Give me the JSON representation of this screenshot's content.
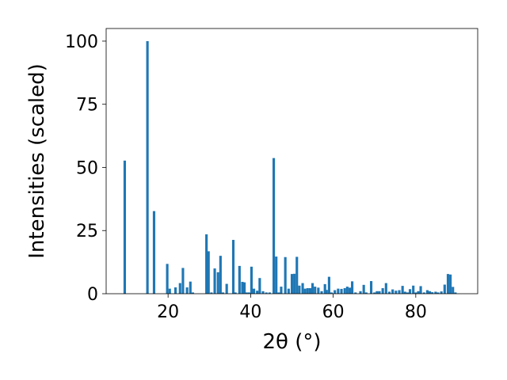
{
  "chart_data": {
    "type": "bar",
    "xlabel": "2θ (°)",
    "ylabel": "Intensities (scaled)",
    "xlim": [
      5,
      95
    ],
    "ylim": [
      0,
      105
    ],
    "x_ticks": [
      20,
      40,
      60,
      80
    ],
    "y_ticks": [
      0,
      25,
      50,
      75,
      100
    ],
    "grid": false,
    "bar_color": "#1f77b4",
    "series": [
      {
        "x": [
          9.5,
          15.0,
          16.6,
          19.8,
          20.4,
          21.8,
          22.9,
          23.6,
          24.6,
          25.4,
          26.0,
          29.3,
          29.8,
          30.5,
          31.3,
          32.1,
          32.7,
          33.3,
          34.2,
          35.8,
          36.3,
          37.3,
          38.0,
          38.5,
          39.0,
          39.6,
          40.2,
          40.8,
          41.6,
          42.2,
          43.0,
          43.8,
          44.6,
          45.6,
          46.2,
          46.8,
          47.4,
          48.4,
          49.2,
          50.0,
          50.6,
          51.2,
          51.8,
          52.6,
          53.2,
          53.8,
          54.4,
          55.0,
          55.6,
          56.4,
          57.2,
          58.0,
          58.4,
          59.0,
          59.6,
          60.4,
          61.2,
          62.0,
          62.8,
          63.4,
          64.0,
          64.6,
          65.4,
          66.6,
          67.4,
          68.0,
          69.2,
          70.0,
          70.6,
          71.2,
          72.0,
          72.8,
          73.6,
          74.4,
          75.2,
          76.0,
          76.8,
          77.4,
          78.0,
          78.6,
          79.4,
          80.0,
          80.6,
          81.2,
          82.0,
          82.8,
          83.4,
          84.0,
          84.8,
          85.4,
          86.2,
          87.0,
          87.8,
          88.4,
          89.0,
          89.6
        ],
        "values": [
          52.7,
          100.0,
          32.7,
          11.8,
          2.0,
          2.5,
          4.2,
          10.2,
          2.5,
          4.8,
          0.5,
          23.5,
          16.8,
          0.5,
          10.0,
          8.5,
          15.0,
          0.5,
          3.9,
          21.3,
          0.5,
          11.0,
          4.7,
          4.5,
          0.5,
          0.5,
          10.7,
          2.0,
          1.2,
          6.2,
          1.0,
          0.5,
          0.5,
          53.7,
          14.7,
          0.5,
          2.8,
          14.5,
          2.0,
          7.8,
          7.9,
          14.6,
          3.2,
          4.2,
          2.0,
          2.2,
          2.2,
          4.2,
          2.8,
          2.4,
          1.0,
          3.8,
          1.5,
          6.7,
          0.5,
          1.4,
          2.0,
          1.9,
          2.2,
          2.8,
          2.4,
          4.9,
          0.5,
          1.0,
          3.5,
          0.5,
          5.0,
          0.5,
          1.0,
          1.0,
          2.2,
          4.2,
          0.8,
          1.7,
          1.2,
          1.4,
          3.1,
          0.8,
          0.5,
          1.8,
          3.2,
          0.5,
          1.0,
          3.0,
          0.5,
          1.4,
          1.0,
          0.6,
          0.8,
          0.5,
          0.9,
          3.6,
          7.8,
          7.6,
          2.7,
          0.5
        ]
      }
    ]
  }
}
